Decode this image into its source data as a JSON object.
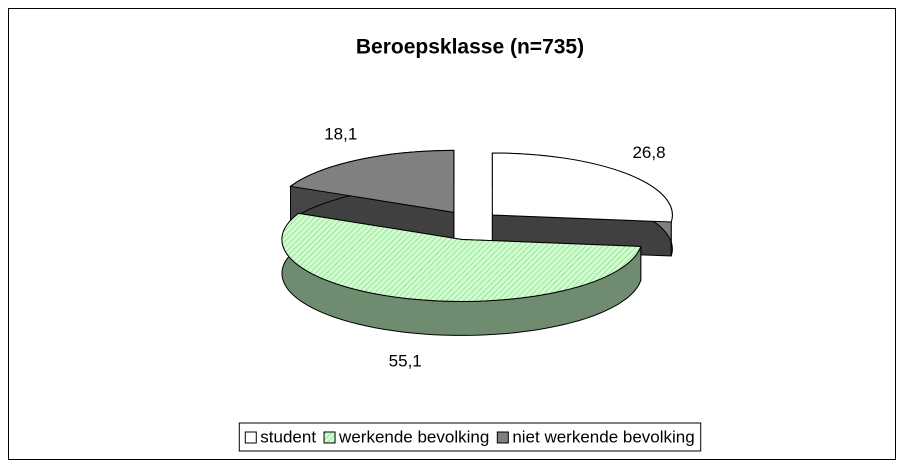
{
  "chart_data": {
    "type": "pie3d",
    "title": "Beroepsklasse (n=735)",
    "categories": [
      "student",
      "werkende bevolking",
      "niet werkende bevolking"
    ],
    "values": [
      26.8,
      55.1,
      18.1
    ],
    "value_labels": [
      "26,8",
      "55,1",
      "18,1"
    ],
    "colors": [
      "#ffffff",
      "#ccffcc",
      "#808080"
    ],
    "legend": "bottom"
  }
}
